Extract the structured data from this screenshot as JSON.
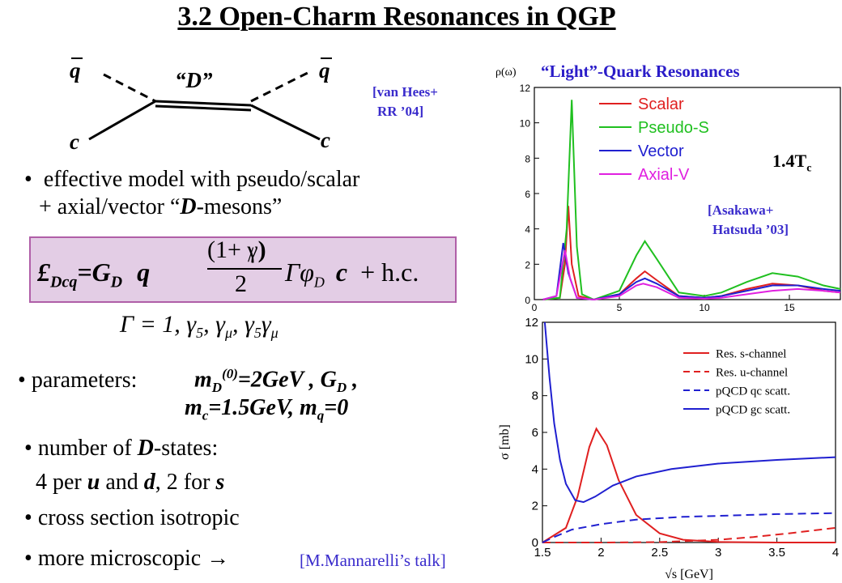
{
  "title": "3.2 Open-Charm Resonances in QGP",
  "diagram": {
    "q_left": "q",
    "q_right": "q",
    "D_label": "“D”",
    "c_left": "c",
    "c_right": "c"
  },
  "citations": {
    "vanhees_1": "[van Hees+",
    "vanhees_2": "RR ’04]",
    "asakawa_1": "[Asakawa+",
    "asakawa_2": "Hatsuda ’03]",
    "mannarelli": "[M.Mannarelli’s talk]"
  },
  "bullets": {
    "b1_line1": "effective model with pseudo/scalar",
    "b1_line2_pre": "+ axial/vector “",
    "b1_line2_D": "D",
    "b1_line2_post": "-mesons”",
    "b2_label": "parameters:",
    "b2_m": "m",
    "b2_sub_D": "D",
    "b2_sup0": "(0)",
    "b2_val": "=2GeV ,  G",
    "b2_sub_D2": "D",
    "b2_comma": " ,",
    "b2_line2_m": "m",
    "b2_line2_sub_c": "c",
    "b2_line2_val": "=1.5GeV, m",
    "b2_line2_sub_q": "q",
    "b2_line2_end": "=0",
    "b3_line1_pre": "number of ",
    "b3_line1_D": "D",
    "b3_line1_post": "-states:",
    "b3_line2_a": "4 per ",
    "b3_line2_u": "u",
    "b3_line2_b": " and ",
    "b3_line2_d": "d",
    "b3_line2_c": ", 2 for ",
    "b3_line2_s": "s",
    "b4": "cross section isotropic",
    "b5": "more microscopic →"
  },
  "equation": {
    "L": "£",
    "L_sub": "Dcq",
    "eq": "=G",
    "G_sub": "D",
    "q": "q",
    "num": "(1+ γ",
    "close": ")",
    "slash": "/",
    "den": "2",
    "Gamma": "Γ",
    "phi": "φ",
    "phi_sub": "D",
    "c": "c",
    "hc": "+ h.c.",
    "gamma_list": "Γ = 1, γ",
    "g5": "5",
    "gmu": ", γ",
    "mu": "μ",
    "g5gmu": ", γ"
  },
  "chart_data": [
    {
      "type": "line",
      "title": "“Light”-Quark Resonances",
      "ylabel": "ρ(ω)",
      "annotation": "1.4T",
      "annotation_sub": "c",
      "xlim": [
        0,
        18
      ],
      "ylim": [
        0,
        12
      ],
      "xticks": [
        "0",
        "5",
        "10",
        "15"
      ],
      "yticks": [
        "0",
        "2",
        "4",
        "6",
        "8",
        "10",
        "12"
      ],
      "series": [
        {
          "name": "Scalar",
          "color": "#e02020",
          "points": [
            [
              0.5,
              0
            ],
            [
              1.5,
              0.1
            ],
            [
              1.8,
              2
            ],
            [
              2.0,
              5.3
            ],
            [
              2.2,
              2
            ],
            [
              2.6,
              0.2
            ],
            [
              3.5,
              0
            ],
            [
              5,
              0.3
            ],
            [
              6,
              1.2
            ],
            [
              6.5,
              1.6
            ],
            [
              7.2,
              1.1
            ],
            [
              8.5,
              0.2
            ],
            [
              10,
              0.1
            ],
            [
              11,
              0.2
            ],
            [
              12.5,
              0.6
            ],
            [
              14,
              0.9
            ],
            [
              15.5,
              0.8
            ],
            [
              17,
              0.5
            ],
            [
              18,
              0.4
            ]
          ]
        },
        {
          "name": "Pseudo-S",
          "color": "#20c020",
          "points": [
            [
              0.5,
              0
            ],
            [
              1.5,
              0.1
            ],
            [
              1.9,
              4
            ],
            [
              2.2,
              11.3
            ],
            [
              2.5,
              3
            ],
            [
              2.8,
              0.3
            ],
            [
              3.5,
              0
            ],
            [
              5,
              0.5
            ],
            [
              6,
              2.5
            ],
            [
              6.5,
              3.3
            ],
            [
              7.2,
              2.3
            ],
            [
              8.5,
              0.4
            ],
            [
              10,
              0.2
            ],
            [
              11,
              0.4
            ],
            [
              12.5,
              1.0
            ],
            [
              14,
              1.5
            ],
            [
              15.5,
              1.3
            ],
            [
              17,
              0.8
            ],
            [
              18,
              0.6
            ]
          ]
        },
        {
          "name": "Vector",
          "color": "#2020d0",
          "points": [
            [
              0.5,
              0
            ],
            [
              1.3,
              0.2
            ],
            [
              1.7,
              3.2
            ],
            [
              2.0,
              1.5
            ],
            [
              2.5,
              0.1
            ],
            [
              3.5,
              0
            ],
            [
              5,
              0.3
            ],
            [
              6,
              1.0
            ],
            [
              6.5,
              1.2
            ],
            [
              7.2,
              0.9
            ],
            [
              8.5,
              0.2
            ],
            [
              10,
              0.1
            ],
            [
              11,
              0.2
            ],
            [
              12.5,
              0.5
            ],
            [
              14,
              0.8
            ],
            [
              15.5,
              0.8
            ],
            [
              17,
              0.6
            ],
            [
              18,
              0.5
            ]
          ]
        },
        {
          "name": "Axial-V",
          "color": "#e020e0",
          "points": [
            [
              0.5,
              0
            ],
            [
              1.3,
              0.2
            ],
            [
              1.8,
              2.8
            ],
            [
              2.1,
              1.2
            ],
            [
              2.5,
              0.1
            ],
            [
              3.5,
              0
            ],
            [
              5,
              0.2
            ],
            [
              6,
              0.8
            ],
            [
              6.4,
              0.9
            ],
            [
              7.2,
              0.7
            ],
            [
              8.5,
              0.1
            ],
            [
              10,
              0.05
            ],
            [
              11,
              0.1
            ],
            [
              12.5,
              0.3
            ],
            [
              14,
              0.5
            ],
            [
              15.5,
              0.6
            ],
            [
              17,
              0.5
            ],
            [
              18,
              0.4
            ]
          ]
        }
      ]
    },
    {
      "type": "line",
      "xlabel": "√s [GeV]",
      "ylabel": "σ [mb]",
      "xlim": [
        1.5,
        4
      ],
      "ylim": [
        0,
        12
      ],
      "xticks": [
        "1.5",
        "2",
        "2.5",
        "3",
        "3.5",
        "4"
      ],
      "yticks": [
        "0",
        "2",
        "4",
        "6",
        "8",
        "10",
        "12"
      ],
      "series": [
        {
          "name": "Res. s-channel",
          "color": "#e02020",
          "dash": "solid",
          "points": [
            [
              1.5,
              0
            ],
            [
              1.7,
              0.8
            ],
            [
              1.8,
              2.5
            ],
            [
              1.9,
              5.2
            ],
            [
              1.96,
              6.2
            ],
            [
              2.05,
              5.3
            ],
            [
              2.15,
              3.4
            ],
            [
              2.3,
              1.5
            ],
            [
              2.5,
              0.5
            ],
            [
              2.7,
              0.15
            ],
            [
              3,
              0.03
            ],
            [
              3.5,
              0
            ],
            [
              4,
              0
            ]
          ]
        },
        {
          "name": "Res. u-channel",
          "color": "#e02020",
          "dash": "dashed",
          "points": [
            [
              1.5,
              0
            ],
            [
              2,
              0
            ],
            [
              2.5,
              0.02
            ],
            [
              3,
              0.15
            ],
            [
              3.3,
              0.3
            ],
            [
              3.6,
              0.5
            ],
            [
              4,
              0.8
            ]
          ]
        },
        {
          "name": "pQCD qc scatt.",
          "color": "#2020d0",
          "dash": "dashed",
          "points": [
            [
              1.5,
              0
            ],
            [
              1.6,
              0.3
            ],
            [
              1.75,
              0.7
            ],
            [
              2,
              1.0
            ],
            [
              2.3,
              1.25
            ],
            [
              2.7,
              1.4
            ],
            [
              3,
              1.45
            ],
            [
              3.5,
              1.55
            ],
            [
              4,
              1.6
            ]
          ]
        },
        {
          "name": "pQCD gc scatt.",
          "color": "#2020d0",
          "dash": "solid",
          "points": [
            [
              1.52,
              12
            ],
            [
              1.56,
              9
            ],
            [
              1.6,
              6.5
            ],
            [
              1.65,
              4.5
            ],
            [
              1.7,
              3.2
            ],
            [
              1.78,
              2.3
            ],
            [
              1.85,
              2.2
            ],
            [
              1.95,
              2.5
            ],
            [
              2.1,
              3.1
            ],
            [
              2.3,
              3.6
            ],
            [
              2.6,
              4.0
            ],
            [
              3,
              4.3
            ],
            [
              3.5,
              4.5
            ],
            [
              4,
              4.65
            ]
          ]
        }
      ]
    }
  ]
}
